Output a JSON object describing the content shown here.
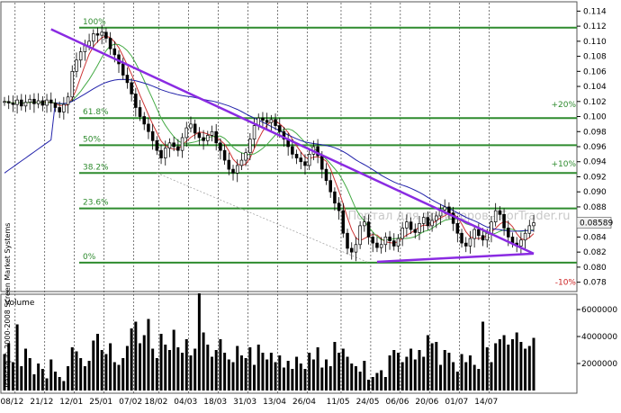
{
  "chart_data": [
    {
      "type": "candlestick",
      "panel": "price",
      "ylim": [
        0.077,
        0.115
      ],
      "y_ticks": [
        "0.114",
        "0.112",
        "0.110",
        "0.108",
        "0.106",
        "0.104",
        "0.102",
        "0.100",
        "0.098",
        "0.096",
        "0.094",
        "0.092",
        "0.090",
        "0.088",
        "0.086",
        "0.084",
        "0.082",
        "0.080",
        "0.078"
      ],
      "current_price_label": "0.08589",
      "watermark": "Портал для трейдеров - ForTrader.ru",
      "fibonacci_levels": [
        {
          "label": "100%",
          "value": 0.1118
        },
        {
          "label": "61.8%",
          "value": 0.0998
        },
        {
          "label": "50%",
          "value": 0.0962
        },
        {
          "label": "38.2%",
          "value": 0.0925
        },
        {
          "label": "23.6%",
          "value": 0.0878
        },
        {
          "label": "0%",
          "value": 0.0806
        }
      ],
      "percent_labels": [
        {
          "label": "+20%",
          "value": 0.1016
        },
        {
          "label": "+10%",
          "value": 0.0937
        },
        {
          "label": "-10%",
          "value": 0.078
        }
      ],
      "trendlines": [
        {
          "name": "resistance",
          "from": [
            11,
            0.1116
          ],
          "to": [
            125,
            0.0818
          ]
        },
        {
          "name": "support",
          "from": [
            88,
            0.0807
          ],
          "to": [
            125,
            0.0818
          ]
        }
      ],
      "closes": [
        0.102,
        0.1018,
        0.1016,
        0.1022,
        0.1014,
        0.1019,
        0.1023,
        0.1017,
        0.1021,
        0.1015,
        0.1022,
        0.1018,
        0.1012,
        0.1006,
        0.1016,
        0.1026,
        0.106,
        0.1075,
        0.1086,
        0.1094,
        0.11,
        0.111,
        0.1108,
        0.1112,
        0.1104,
        0.109,
        0.1082,
        0.107,
        0.1055,
        0.1045,
        0.103,
        0.1012,
        0.1,
        0.099,
        0.098,
        0.0968,
        0.0955,
        0.0945,
        0.0958,
        0.0965,
        0.096,
        0.0955,
        0.0972,
        0.0985,
        0.099,
        0.0978,
        0.0972,
        0.0968,
        0.0975,
        0.098,
        0.0965,
        0.0955,
        0.0942,
        0.093,
        0.0925,
        0.0935,
        0.0942,
        0.0952,
        0.097,
        0.0988,
        0.0998,
        0.0995,
        0.0992,
        0.0996,
        0.0988,
        0.098,
        0.097,
        0.096,
        0.095,
        0.0945,
        0.094,
        0.0935,
        0.095,
        0.096,
        0.0948,
        0.093,
        0.0915,
        0.09,
        0.0885,
        0.0875,
        0.0845,
        0.0825,
        0.082,
        0.083,
        0.0855,
        0.086,
        0.084,
        0.0832,
        0.0826,
        0.083,
        0.084,
        0.0835,
        0.0828,
        0.0838,
        0.0852,
        0.086,
        0.085,
        0.0846,
        0.0858,
        0.0866,
        0.0855,
        0.0862,
        0.0868,
        0.0876,
        0.088,
        0.0872,
        0.0858,
        0.0845,
        0.0832,
        0.0828,
        0.0838,
        0.085,
        0.0842,
        0.0836,
        0.0845,
        0.086,
        0.0875,
        0.087,
        0.0852,
        0.084,
        0.0832,
        0.0828,
        0.0836,
        0.0845,
        0.0855,
        0.0859
      ],
      "moving_averages": [
        {
          "color": "#cc3333",
          "period": 5
        },
        {
          "color": "#44aa44",
          "period": 10
        },
        {
          "color": "#2222aa",
          "period": 40
        }
      ]
    },
    {
      "type": "bar",
      "panel": "volume",
      "title": "Volume",
      "ylim": [
        0,
        7000000
      ],
      "y_ticks": [
        "6000000",
        "4000000",
        "2000000"
      ],
      "y_tick_values": [
        6000000,
        4000000,
        2000000
      ],
      "x_tick_labels": [
        "08/12",
        "21/12",
        "12/01",
        "25/01",
        "07/02",
        "18/02",
        "04/03",
        "18/03",
        "31/03",
        "13/04",
        "26/04",
        "11/05",
        "24/05",
        "06/06",
        "20/06",
        "01/07",
        "14/07"
      ],
      "x_tick_index": [
        2,
        9,
        16,
        23,
        30,
        36,
        43,
        50,
        57,
        64,
        71,
        79,
        86,
        93,
        100,
        107,
        114
      ],
      "credit": "Transaq © 2000-2008 Screen Market Systems",
      "values": [
        2700000,
        3500000,
        2100000,
        4900000,
        1800000,
        3100000,
        2400000,
        1200000,
        2000000,
        1600000,
        900000,
        2300000,
        1400000,
        1000000,
        700000,
        1800000,
        3200000,
        2900000,
        2400000,
        1800000,
        2200000,
        3700000,
        4200000,
        3000000,
        2700000,
        3500000,
        2100000,
        1900000,
        2400000,
        3300000,
        4600000,
        5100000,
        3500000,
        4100000,
        5300000,
        3100000,
        2400000,
        4200000,
        3400000,
        3000000,
        4500000,
        3200000,
        2800000,
        3800000,
        2600000,
        3100000,
        7200000,
        4300000,
        3400000,
        2500000,
        3000000,
        3800000,
        2800000,
        2300000,
        2100000,
        3300000,
        2600000,
        2400000,
        3200000,
        1900000,
        3400000,
        2800000,
        2300000,
        2800000,
        2100000,
        2600000,
        1700000,
        2200000,
        1600000,
        2500000,
        2000000,
        1600000,
        2800000,
        2300000,
        3200000,
        1700000,
        2300000,
        1800000,
        3600000,
        2800000,
        3100000,
        2500000,
        2000000,
        1800000,
        1400000,
        2200000,
        800000,
        1000000,
        1300000,
        1500000,
        1000000,
        2600000,
        3000000,
        2800000,
        2100000,
        2500000,
        3100000,
        2300000,
        3000000,
        2500000,
        4100000,
        3500000,
        3600000,
        1900000,
        3000000,
        2800000,
        2100000,
        1400000,
        2700000,
        2100000,
        2600000,
        1900000,
        1600000,
        5100000,
        3200000,
        2100000,
        3500000,
        3800000,
        4100000,
        3400000,
        3800000,
        4300000,
        3600000,
        3100000,
        3300000,
        3900000
      ]
    }
  ]
}
